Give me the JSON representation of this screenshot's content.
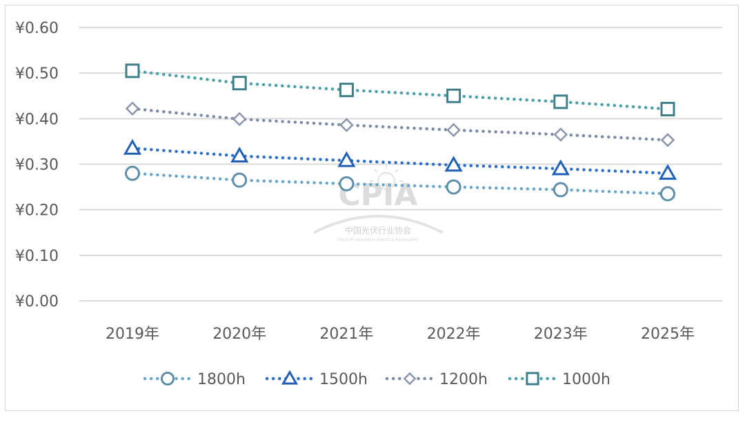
{
  "chart_data": {
    "type": "line",
    "title": "",
    "xlabel": "",
    "ylabel": "",
    "categories": [
      "2019年",
      "2020年",
      "2021年",
      "2022年",
      "2023年",
      "2025年"
    ],
    "yticks": [
      "¥0.00",
      "¥0.10",
      "¥0.20",
      "¥0.30",
      "¥0.40",
      "¥0.50",
      "¥0.60"
    ],
    "ylim": [
      0,
      0.6
    ],
    "grid": true,
    "legend_position": "bottom",
    "series": [
      {
        "name": "1800h",
        "marker": "circle",
        "color": "#5f8fa8",
        "line_color": "#6aa6c8",
        "values": [
          0.28,
          0.265,
          0.257,
          0.25,
          0.244,
          0.235
        ]
      },
      {
        "name": "1500h",
        "marker": "triangle",
        "color": "#1f5fb8",
        "line_color": "#2d6fc4",
        "values": [
          0.335,
          0.318,
          0.308,
          0.298,
          0.29,
          0.28
        ]
      },
      {
        "name": "1200h",
        "marker": "diamond",
        "color": "#8a95ab",
        "line_color": "#7e8ba4",
        "values": [
          0.422,
          0.399,
          0.386,
          0.375,
          0.365,
          0.353
        ]
      },
      {
        "name": "1000h",
        "marker": "square",
        "color": "#3f7f88",
        "line_color": "#4aa0a8",
        "values": [
          0.505,
          0.478,
          0.463,
          0.45,
          0.437,
          0.421
        ]
      }
    ]
  },
  "watermark": {
    "logo_text": "CPIA",
    "org_name": "中国光伏行业协会",
    "org_name_en": "China Photovoltaic Industry Association"
  }
}
